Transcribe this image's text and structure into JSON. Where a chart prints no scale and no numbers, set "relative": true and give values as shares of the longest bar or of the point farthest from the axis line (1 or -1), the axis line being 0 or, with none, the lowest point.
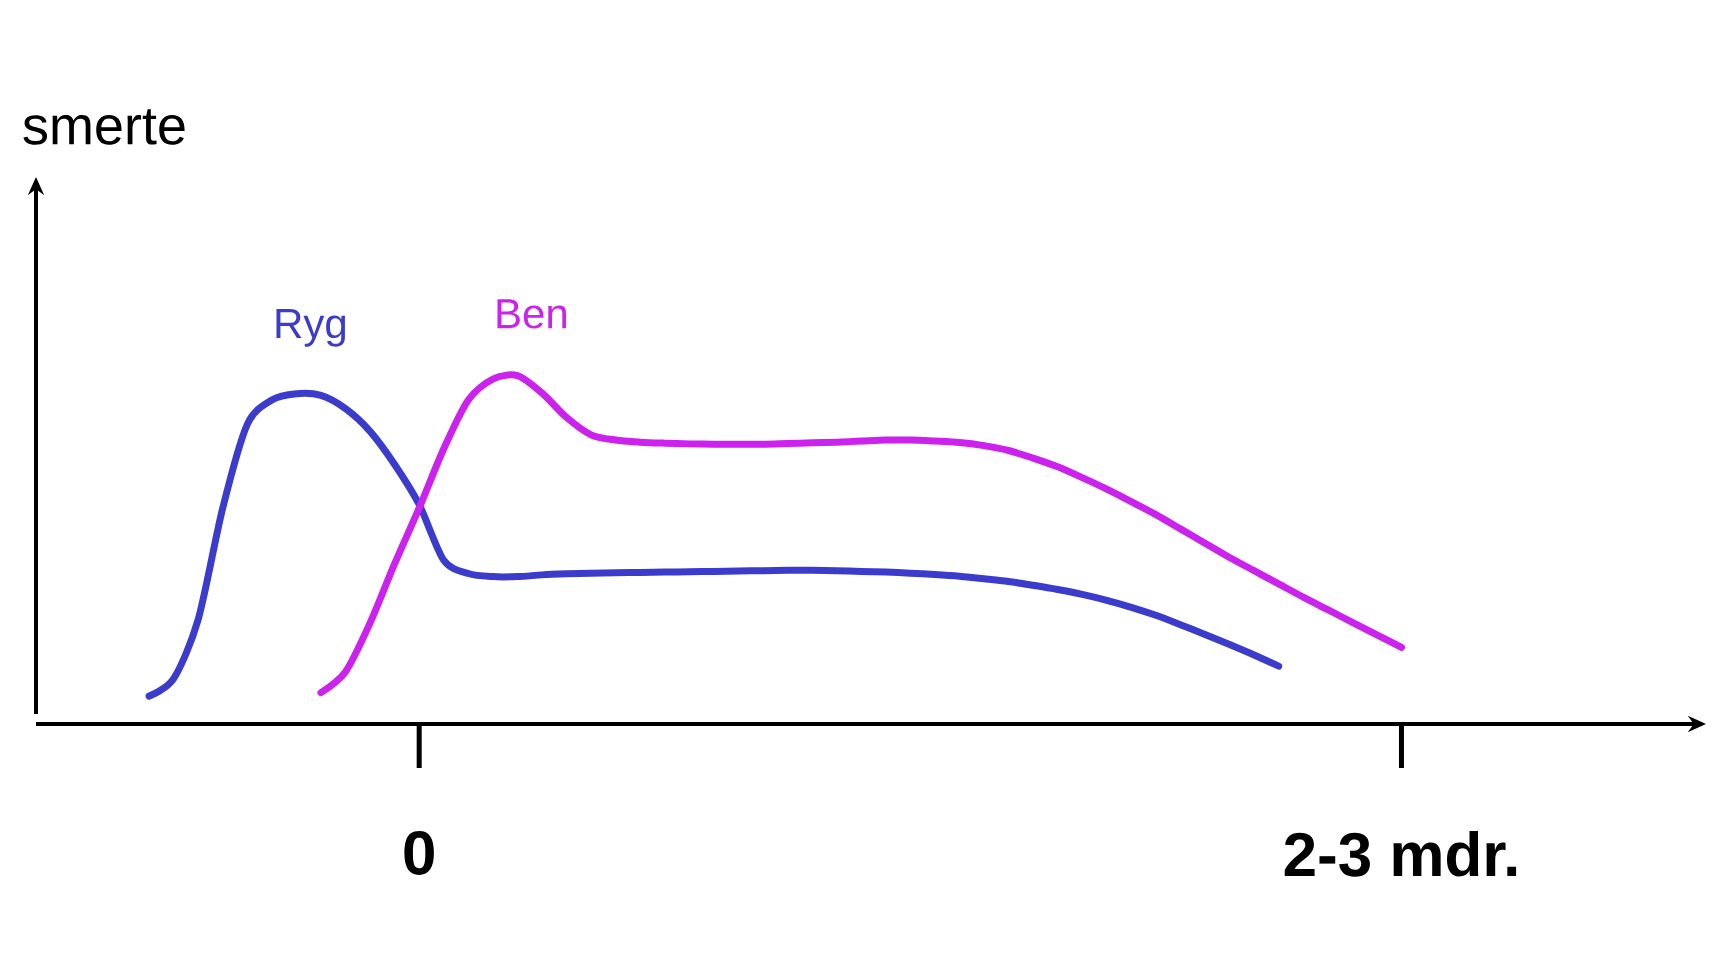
{
  "chart_data": {
    "type": "line",
    "ylabel": "smerte",
    "relative": true,
    "categories": [
      null,
      null,
      null,
      null,
      null,
      null,
      null,
      null,
      null,
      null,
      null,
      null,
      "0",
      null,
      null,
      null,
      null,
      null,
      null,
      null,
      null,
      null,
      null,
      null,
      null,
      null,
      null,
      null,
      null,
      null,
      null,
      null,
      null,
      null,
      null,
      null,
      null,
      null,
      null,
      null,
      null,
      null,
      null,
      null,
      null,
      null,
      null,
      null,
      null,
      null,
      null,
      null,
      "2-3 mdr."
    ],
    "series": [
      {
        "name": "Ryg",
        "color": "#3c3ccc",
        "values": [
          null,
          0.08,
          0.13,
          0.3,
          0.62,
          0.86,
          0.93,
          0.948,
          0.943,
          0.905,
          0.84,
          0.745,
          0.63,
          0.47,
          0.432,
          0.423,
          0.423,
          0.428,
          0.431,
          0.433,
          0.434,
          0.435,
          0.436,
          0.437,
          0.438,
          0.439,
          0.44,
          0.441,
          0.441,
          0.44,
          0.438,
          0.436,
          0.433,
          0.429,
          0.424,
          0.417,
          0.409,
          0.398,
          0.386,
          0.372,
          0.355,
          0.335,
          0.312,
          0.285,
          0.257,
          0.228,
          0.198,
          0.166,
          null,
          null,
          null,
          null,
          null
        ]
      },
      {
        "name": "Ben",
        "color": "#cc22ee",
        "values": [
          null,
          null,
          null,
          null,
          null,
          null,
          null,
          null,
          0.09,
          0.15,
          0.29,
          0.46,
          0.62,
          0.79,
          0.93,
          0.99,
          1.0,
          0.95,
          0.88,
          0.83,
          0.815,
          0.809,
          0.806,
          0.804,
          0.803,
          0.803,
          0.803,
          0.805,
          0.807,
          0.809,
          0.812,
          0.815,
          0.815,
          0.812,
          0.808,
          0.799,
          0.785,
          0.763,
          0.738,
          0.707,
          0.674,
          0.638,
          0.601,
          0.56,
          0.519,
          0.478,
          0.44,
          0.402,
          0.364,
          0.328,
          0.292,
          0.256,
          0.22
        ]
      }
    ]
  }
}
